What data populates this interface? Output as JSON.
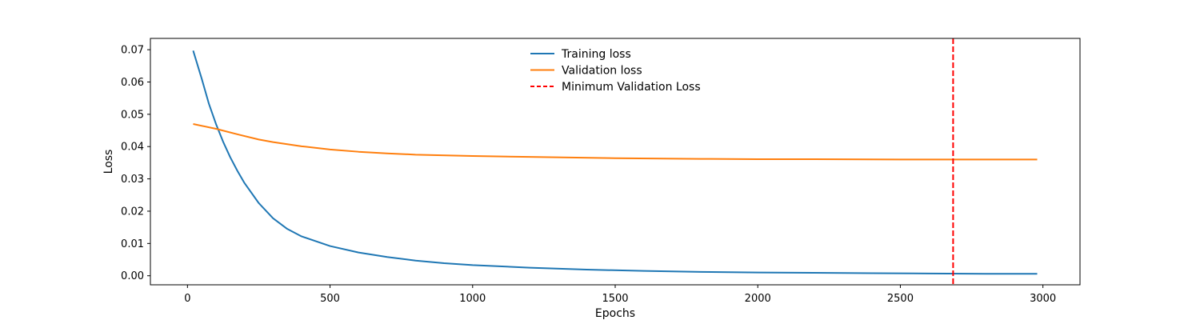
{
  "chart_data": {
    "type": "line",
    "title": "",
    "xlabel": "Epochs",
    "ylabel": "Loss",
    "xlim": [
      -130,
      3130
    ],
    "ylim": [
      -0.0028,
      0.0735
    ],
    "x_ticks": [
      0,
      500,
      1000,
      1500,
      2000,
      2500,
      3000
    ],
    "x_tick_labels": [
      "0",
      "500",
      "1000",
      "1500",
      "2000",
      "2500",
      "3000"
    ],
    "y_ticks": [
      0.0,
      0.01,
      0.02,
      0.03,
      0.04,
      0.05,
      0.06,
      0.07
    ],
    "y_tick_labels": [
      "0.00",
      "0.01",
      "0.02",
      "0.03",
      "0.04",
      "0.05",
      "0.06",
      "0.07"
    ],
    "grid": false,
    "legend_position": "top-center",
    "series": [
      {
        "name": "Training loss",
        "color": "#1f77b4",
        "style": "solid",
        "x": [
          20,
          50,
          75,
          100,
          125,
          150,
          175,
          200,
          250,
          300,
          350,
          400,
          500,
          600,
          700,
          800,
          900,
          1000,
          1200,
          1400,
          1600,
          1800,
          2000,
          2200,
          2400,
          2600,
          2800,
          2980
        ],
        "y": [
          0.0697,
          0.061,
          0.0533,
          0.047,
          0.0415,
          0.0367,
          0.0325,
          0.0287,
          0.0225,
          0.0178,
          0.0145,
          0.0122,
          0.0092,
          0.0072,
          0.0058,
          0.0047,
          0.0039,
          0.0033,
          0.0025,
          0.0019,
          0.0015,
          0.0012,
          0.001,
          0.0009,
          0.0008,
          0.0007,
          0.0006,
          0.0006
        ]
      },
      {
        "name": "Validation loss",
        "color": "#ff7f0e",
        "style": "solid",
        "x": [
          20,
          100,
          180,
          250,
          300,
          400,
          500,
          600,
          700,
          800,
          1000,
          1200,
          1500,
          1800,
          2000,
          2200,
          2500,
          2700,
          2980
        ],
        "y": [
          0.047,
          0.0455,
          0.0437,
          0.0422,
          0.0414,
          0.0401,
          0.0391,
          0.0384,
          0.0379,
          0.0375,
          0.0371,
          0.0368,
          0.0364,
          0.0362,
          0.0361,
          0.0361,
          0.036,
          0.036,
          0.036
        ]
      }
    ],
    "vlines": [
      {
        "name": "Minimum Validation Loss",
        "x": 2685,
        "color": "#ff0000",
        "style": "dashed"
      }
    ]
  }
}
